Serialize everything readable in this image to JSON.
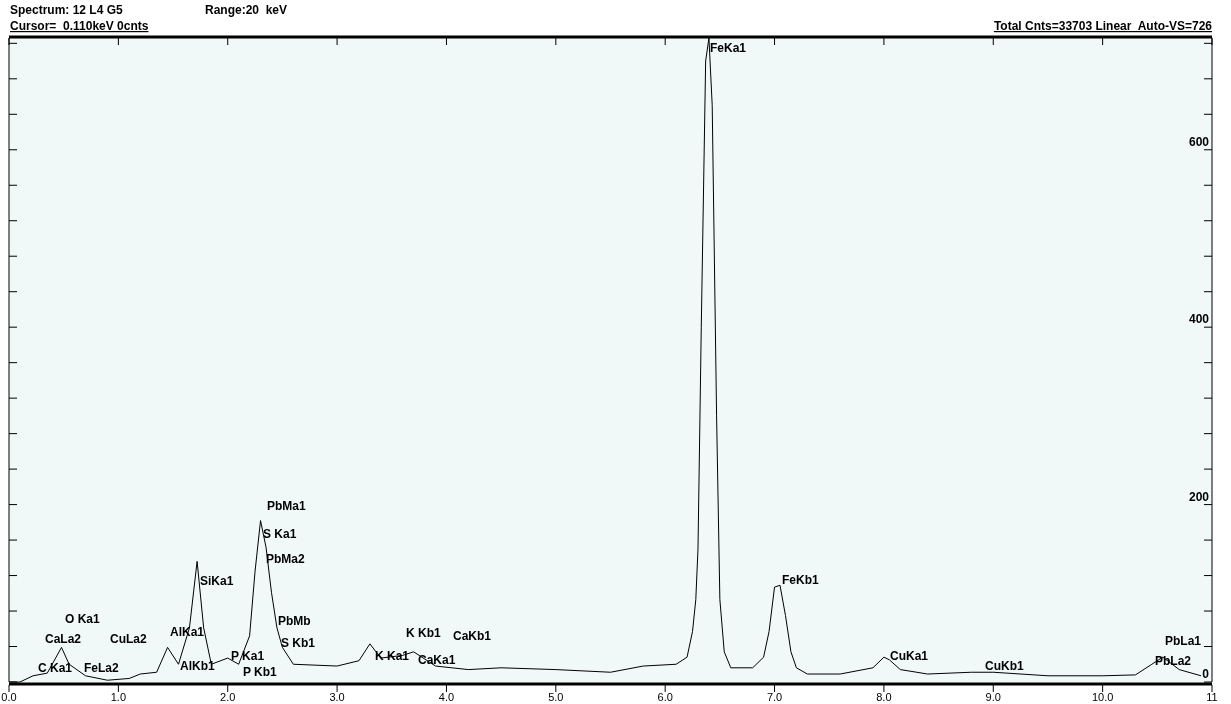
{
  "chart_data": {
    "type": "line",
    "title": "Spectrum: 12 L4 G5",
    "annotations": [
      "Range:20  keV",
      "Cursor=  0.110keV 0cnts",
      "Total Cnts=33703 Linear  Auto-VS=726",
      "C Ka1",
      "CaLa2",
      "O Ka1",
      "FeLa2",
      "CuLa2",
      "AlKa1",
      "AlKb1",
      "SiKa1",
      "P Ka1",
      "P Kb1",
      "PbMa1",
      "S Ka1",
      "PbMa2",
      "PbMb",
      "S Kb1",
      "K Ka1",
      "K Kb1",
      "CaKa1",
      "CaKb1",
      "FeKa1",
      "FeKb1",
      "CuKa1",
      "CuKb1",
      "PbLa1",
      "PbLa2"
    ],
    "x": [
      0,
      0.1,
      0.22,
      0.35,
      0.48,
      0.55,
      0.7,
      0.9,
      1.1,
      1.2,
      1.35,
      1.45,
      1.55,
      1.65,
      1.72,
      1.78,
      1.85,
      2.0,
      2.1,
      2.2,
      2.25,
      2.3,
      2.35,
      2.4,
      2.45,
      2.5,
      2.6,
      3.0,
      3.2,
      3.3,
      3.4,
      3.6,
      3.7,
      3.9,
      4.2,
      4.5,
      5.0,
      5.5,
      5.8,
      6.1,
      6.2,
      6.25,
      6.28,
      6.3,
      6.33,
      6.37,
      6.4,
      6.43,
      6.47,
      6.5,
      6.54,
      6.6,
      6.8,
      6.9,
      6.95,
      7.0,
      7.05,
      7.1,
      7.15,
      7.2,
      7.3,
      7.6,
      7.9,
      8.0,
      8.05,
      8.15,
      8.4,
      8.8,
      9.0,
      9.5,
      10.0,
      10.3,
      10.45,
      10.55,
      10.7,
      10.9
    ],
    "series": [
      {
        "color": "#000000",
        "values": [
          0,
          0,
          7,
          10,
          39,
          20,
          7,
          2,
          4,
          9,
          11,
          39,
          20,
          61,
          136,
          61,
          20,
          27,
          20,
          52,
          125,
          182,
          152,
          101,
          61,
          39,
          20,
          18,
          24,
          43,
          27,
          30,
          34,
          18,
          14,
          16,
          14,
          11,
          18,
          20,
          28,
          57,
          93,
          150,
          400,
          700,
          726,
          650,
          300,
          93,
          34,
          16,
          16,
          28,
          57,
          107,
          109,
          75,
          34,
          16,
          9,
          9,
          16,
          28,
          25,
          14,
          9,
          11,
          11,
          7,
          7,
          8,
          20,
          28,
          14,
          7
        ]
      }
    ],
    "xlim": [
      0,
      11
    ],
    "xticks": [
      {
        "value": 0,
        "label": "0.0"
      },
      {
        "value": 1,
        "label": "1.0"
      },
      {
        "value": 2,
        "label": "2.0"
      },
      {
        "value": 3,
        "label": "3.0"
      },
      {
        "value": 4,
        "label": "4.0"
      },
      {
        "value": 5,
        "label": "5.0"
      },
      {
        "value": 6,
        "label": "6.0"
      },
      {
        "value": 7,
        "label": "7.0"
      },
      {
        "value": 8,
        "label": "8.0"
      },
      {
        "value": 9,
        "label": "9.0"
      },
      {
        "value": 10,
        "label": "10.0"
      },
      11
    ],
    "ylim": [
      0,
      726
    ],
    "yticks": [
      0,
      {
        "value": 40,
        "label": null
      },
      {
        "value": 80,
        "label": null
      },
      {
        "value": 120,
        "label": null
      },
      {
        "value": 160,
        "label": null
      },
      200,
      {
        "value": 240,
        "label": null
      },
      {
        "value": 280,
        "label": null
      },
      {
        "value": 320,
        "label": null
      },
      {
        "value": 360,
        "label": null
      },
      400,
      {
        "value": 440,
        "label": null
      },
      {
        "value": 480,
        "label": null
      },
      {
        "value": 520,
        "label": null
      },
      {
        "value": 560,
        "label": null
      },
      600,
      {
        "value": 640,
        "label": null
      },
      {
        "value": 680,
        "label": null
      },
      {
        "value": 720,
        "label": null
      }
    ],
    "grid": false
  }
}
